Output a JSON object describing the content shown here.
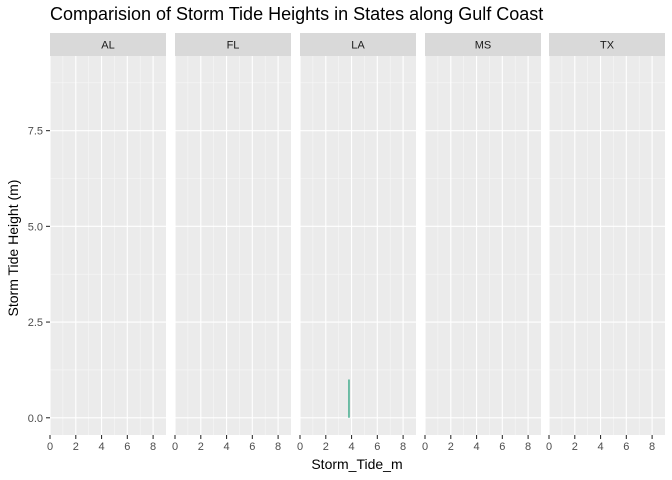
{
  "chart_data": {
    "type": "bar",
    "title": "Comparision of Storm Tide Heights in States along Gulf Coast",
    "xlabel": "Storm_Tide_m",
    "ylabel": "Storm Tide Height (m)",
    "facets": [
      "AL",
      "FL",
      "LA",
      "MS",
      "TX"
    ],
    "xlim": [
      0,
      9
    ],
    "ylim": [
      -0.45,
      9.45
    ],
    "x_ticks": [
      0,
      2,
      4,
      6,
      8
    ],
    "y_ticks": [
      0.0,
      2.5,
      5.0,
      7.5
    ],
    "y_tick_labels": [
      "0.0",
      "2.5",
      "5.0",
      "7.5"
    ],
    "grid": true,
    "bar_color": "#1b9e77",
    "panel_background": "#ebebeb",
    "strip_background": "#d9d9d9",
    "series": [
      {
        "facet": "LA",
        "x": 3.8,
        "y": 1.0
      }
    ]
  }
}
